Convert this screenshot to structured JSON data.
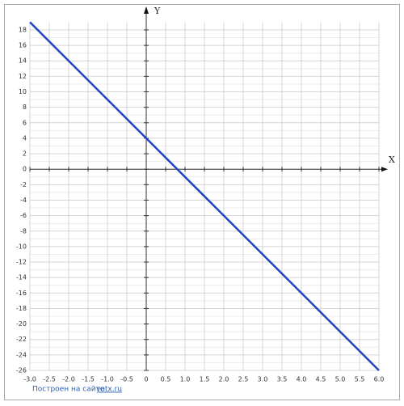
{
  "chart_data": {
    "type": "line",
    "x_label": "X",
    "y_label": "Y",
    "x": [
      -3,
      6
    ],
    "series": [
      {
        "color": "#1f45c0",
        "values": [
          19,
          -26
        ]
      }
    ],
    "xlim": [
      -3,
      6
    ],
    "ylim": [
      -26,
      19
    ],
    "xticks": [
      {
        "value": -3,
        "label": "-3.0"
      },
      -2.5,
      {
        "value": -2,
        "label": "-2.0"
      },
      -1.5,
      {
        "value": -1,
        "label": "-1.0"
      },
      -0.5,
      0,
      0.5,
      {
        "value": 1,
        "label": "1.0"
      },
      1.5,
      {
        "value": 2,
        "label": "2.0"
      },
      2.5,
      {
        "value": 3,
        "label": "3.0"
      },
      3.5,
      {
        "value": 4,
        "label": "4.0"
      },
      4.5,
      {
        "value": 5,
        "label": "5.0"
      },
      5.5,
      {
        "value": 6,
        "label": "6.0"
      }
    ],
    "yticks": [
      18,
      16,
      14,
      12,
      10,
      8,
      6,
      4,
      2,
      0,
      -2,
      -4,
      -6,
      -8,
      -10,
      -12,
      -14,
      -16,
      -18,
      -20,
      -22,
      -24,
      -26
    ],
    "grid": true,
    "footer": {
      "text": "Построен на сайте",
      "link": "yotx.ru"
    }
  }
}
